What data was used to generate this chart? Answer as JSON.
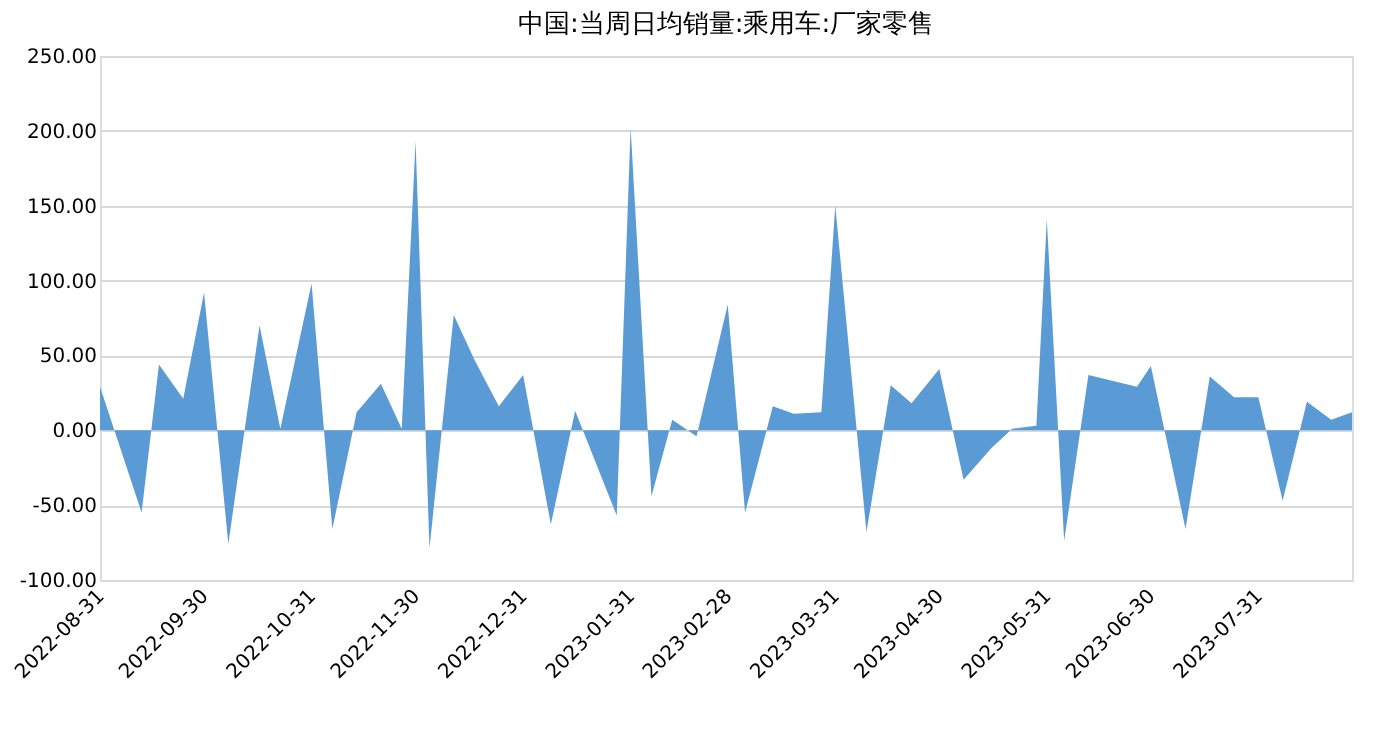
{
  "chart_data": {
    "type": "area",
    "title": "中国:当周日均销量:乘用车:厂家零售",
    "x": [
      "2022-08-31",
      "2022-09-12",
      "2022-09-17",
      "2022-09-24",
      "2022-09-30",
      "2022-10-07",
      "2022-10-16",
      "2022-10-22",
      "2022-10-31",
      "2022-11-06",
      "2022-11-13",
      "2022-11-20",
      "2022-11-26",
      "2022-11-30",
      "2022-12-04",
      "2022-12-11",
      "2022-12-17",
      "2022-12-24",
      "2022-12-31",
      "2023-01-08",
      "2023-01-15",
      "2023-01-27",
      "2023-01-31",
      "2023-02-06",
      "2023-02-12",
      "2023-02-19",
      "2023-02-28",
      "2023-03-05",
      "2023-03-13",
      "2023-03-19",
      "2023-03-27",
      "2023-03-31",
      "2023-04-09",
      "2023-04-16",
      "2023-04-22",
      "2023-04-30",
      "2023-05-07",
      "2023-05-15",
      "2023-05-21",
      "2023-05-28",
      "2023-05-31",
      "2023-06-05",
      "2023-06-12",
      "2023-06-26",
      "2023-06-30",
      "2023-07-10",
      "2023-07-17",
      "2023-07-24",
      "2023-07-31",
      "2023-08-07",
      "2023-08-14",
      "2023-08-21",
      "2023-08-27"
    ],
    "series": [
      {
        "color": "#5b9bd5",
        "values": [
          29,
          -55,
          44,
          21,
          92,
          -76,
          70,
          1,
          98,
          -66,
          12,
          31,
          1,
          193,
          -79,
          77,
          47,
          16,
          37,
          -63,
          13,
          -57,
          202,
          -44,
          7,
          -4,
          84,
          -55,
          16,
          11,
          12,
          150,
          -68,
          30,
          18,
          41,
          -33,
          -12,
          1,
          3,
          141,
          -74,
          37,
          29,
          43,
          -66,
          36,
          22,
          22,
          -47,
          19,
          7,
          12
        ]
      }
    ],
    "xlim": [
      "2022-08-31",
      "2023-08-27"
    ],
    "xticks": [
      "2022-08-31",
      "2022-09-30",
      "2022-10-31",
      "2022-11-30",
      "2022-12-31",
      "2023-01-31",
      "2023-02-28",
      "2023-03-31",
      "2023-04-30",
      "2023-05-31",
      "2023-06-30",
      "2023-07-31"
    ],
    "ylim": [
      -100,
      250
    ],
    "yticks": [
      {
        "value": -100,
        "label": "-100.00"
      },
      {
        "value": -50,
        "label": "-50.00"
      },
      {
        "value": 0,
        "label": "0.00"
      },
      {
        "value": 50,
        "label": "50.00"
      },
      {
        "value": 100,
        "label": "100.00"
      },
      {
        "value": 150,
        "label": "150.00"
      },
      {
        "value": 200,
        "label": "200.00"
      },
      {
        "value": 250,
        "label": "250.00"
      }
    ],
    "grid": "y"
  }
}
